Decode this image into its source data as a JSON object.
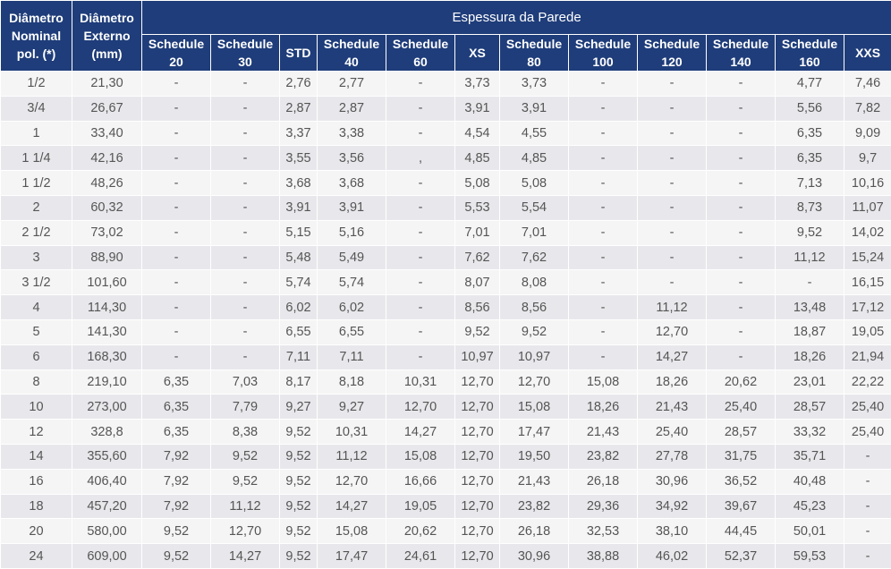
{
  "table": {
    "header": {
      "nominal": [
        "Diâmetro",
        "Nominal",
        "pol. (*)"
      ],
      "externo": [
        "Diâmetro",
        "Externo",
        "(mm)"
      ],
      "group": "Espessura da Parede",
      "columns": [
        [
          "Schedule",
          "20"
        ],
        [
          "Schedule",
          "30"
        ],
        [
          "STD"
        ],
        [
          "Schedule",
          "40"
        ],
        [
          "Schedule",
          "60"
        ],
        [
          "XS"
        ],
        [
          "Schedule",
          "80"
        ],
        [
          "Schedule",
          "100"
        ],
        [
          "Schedule",
          "120"
        ],
        [
          "Schedule",
          "140"
        ],
        [
          "Schedule",
          "160"
        ],
        [
          "XXS"
        ]
      ]
    },
    "rows": [
      [
        "1/2",
        "21,30",
        "-",
        "-",
        "2,76",
        "2,77",
        "-",
        "3,73",
        "3,73",
        "-",
        "-",
        "-",
        "4,77",
        "7,46"
      ],
      [
        "3/4",
        "26,67",
        "-",
        "-",
        "2,87",
        "2,87",
        "-",
        "3,91",
        "3,91",
        "-",
        "-",
        "-",
        "5,56",
        "7,82"
      ],
      [
        "1",
        "33,40",
        "-",
        "-",
        "3,37",
        "3,38",
        "-",
        "4,54",
        "4,55",
        "-",
        "-",
        "-",
        "6,35",
        "9,09"
      ],
      [
        "1 1/4",
        "42,16",
        "-",
        "-",
        "3,55",
        "3,56",
        ",",
        "4,85",
        "4,85",
        "-",
        "-",
        "-",
        "6,35",
        "9,7"
      ],
      [
        "1 1/2",
        "48,26",
        "-",
        "-",
        "3,68",
        "3,68",
        "-",
        "5,08",
        "5,08",
        "-",
        "-",
        "-",
        "7,13",
        "10,16"
      ],
      [
        "2",
        "60,32",
        "-",
        "-",
        "3,91",
        "3,91",
        "-",
        "5,53",
        "5,54",
        "-",
        "-",
        "-",
        "8,73",
        "11,07"
      ],
      [
        "2 1/2",
        "73,02",
        "-",
        "-",
        "5,15",
        "5,16",
        "-",
        "7,01",
        "7,01",
        "-",
        "-",
        "-",
        "9,52",
        "14,02"
      ],
      [
        "3",
        "88,90",
        "-",
        "-",
        "5,48",
        "5,49",
        "-",
        "7,62",
        "7,62",
        "-",
        "-",
        "-",
        "11,12",
        "15,24"
      ],
      [
        "3 1/2",
        "101,60",
        "-",
        "-",
        "5,74",
        "5,74",
        "-",
        "8,07",
        "8,08",
        "-",
        "-",
        "-",
        "-",
        "16,15"
      ],
      [
        "4",
        "114,30",
        "-",
        "-",
        "6,02",
        "6,02",
        "-",
        "8,56",
        "8,56",
        "-",
        "11,12",
        "-",
        "13,48",
        "17,12"
      ],
      [
        "5",
        "141,30",
        "-",
        "-",
        "6,55",
        "6,55",
        "-",
        "9,52",
        "9,52",
        "-",
        "12,70",
        "-",
        "18,87",
        "19,05"
      ],
      [
        "6",
        "168,30",
        "-",
        "-",
        "7,11",
        "7,11",
        "-",
        "10,97",
        "10,97",
        "-",
        "14,27",
        "-",
        "18,26",
        "21,94"
      ],
      [
        "8",
        "219,10",
        "6,35",
        "7,03",
        "8,17",
        "8,18",
        "10,31",
        "12,70",
        "12,70",
        "15,08",
        "18,26",
        "20,62",
        "23,01",
        "22,22"
      ],
      [
        "10",
        "273,00",
        "6,35",
        "7,79",
        "9,27",
        "9,27",
        "12,70",
        "12,70",
        "15,08",
        "18,26",
        "21,43",
        "25,40",
        "28,57",
        "25,40"
      ],
      [
        "12",
        "328,8",
        "6,35",
        "8,38",
        "9,52",
        "10,31",
        "14,27",
        "12,70",
        "17,47",
        "21,43",
        "25,40",
        "28,57",
        "33,32",
        "25,40"
      ],
      [
        "14",
        "355,60",
        "7,92",
        "9,52",
        "9,52",
        "11,12",
        "15,08",
        "12,70",
        "19,50",
        "23,82",
        "27,78",
        "31,75",
        "35,71",
        "-"
      ],
      [
        "16",
        "406,40",
        "7,92",
        "9,52",
        "9,52",
        "12,70",
        "16,66",
        "12,70",
        "21,43",
        "26,18",
        "30,96",
        "36,52",
        "40,48",
        "-"
      ],
      [
        "18",
        "457,20",
        "7,92",
        "11,12",
        "9,52",
        "14,27",
        "19,05",
        "12,70",
        "23,82",
        "29,36",
        "34,92",
        "39,67",
        "45,23",
        "-"
      ],
      [
        "20",
        "580,00",
        "9,52",
        "12,70",
        "9,52",
        "15,08",
        "20,62",
        "12,70",
        "26,18",
        "32,53",
        "38,10",
        "44,45",
        "50,01",
        "-"
      ],
      [
        "24",
        "609,00",
        "9,52",
        "14,27",
        "9,52",
        "17,47",
        "24,61",
        "12,70",
        "30,96",
        "38,88",
        "46,02",
        "52,37",
        "59,53",
        "-"
      ]
    ]
  }
}
